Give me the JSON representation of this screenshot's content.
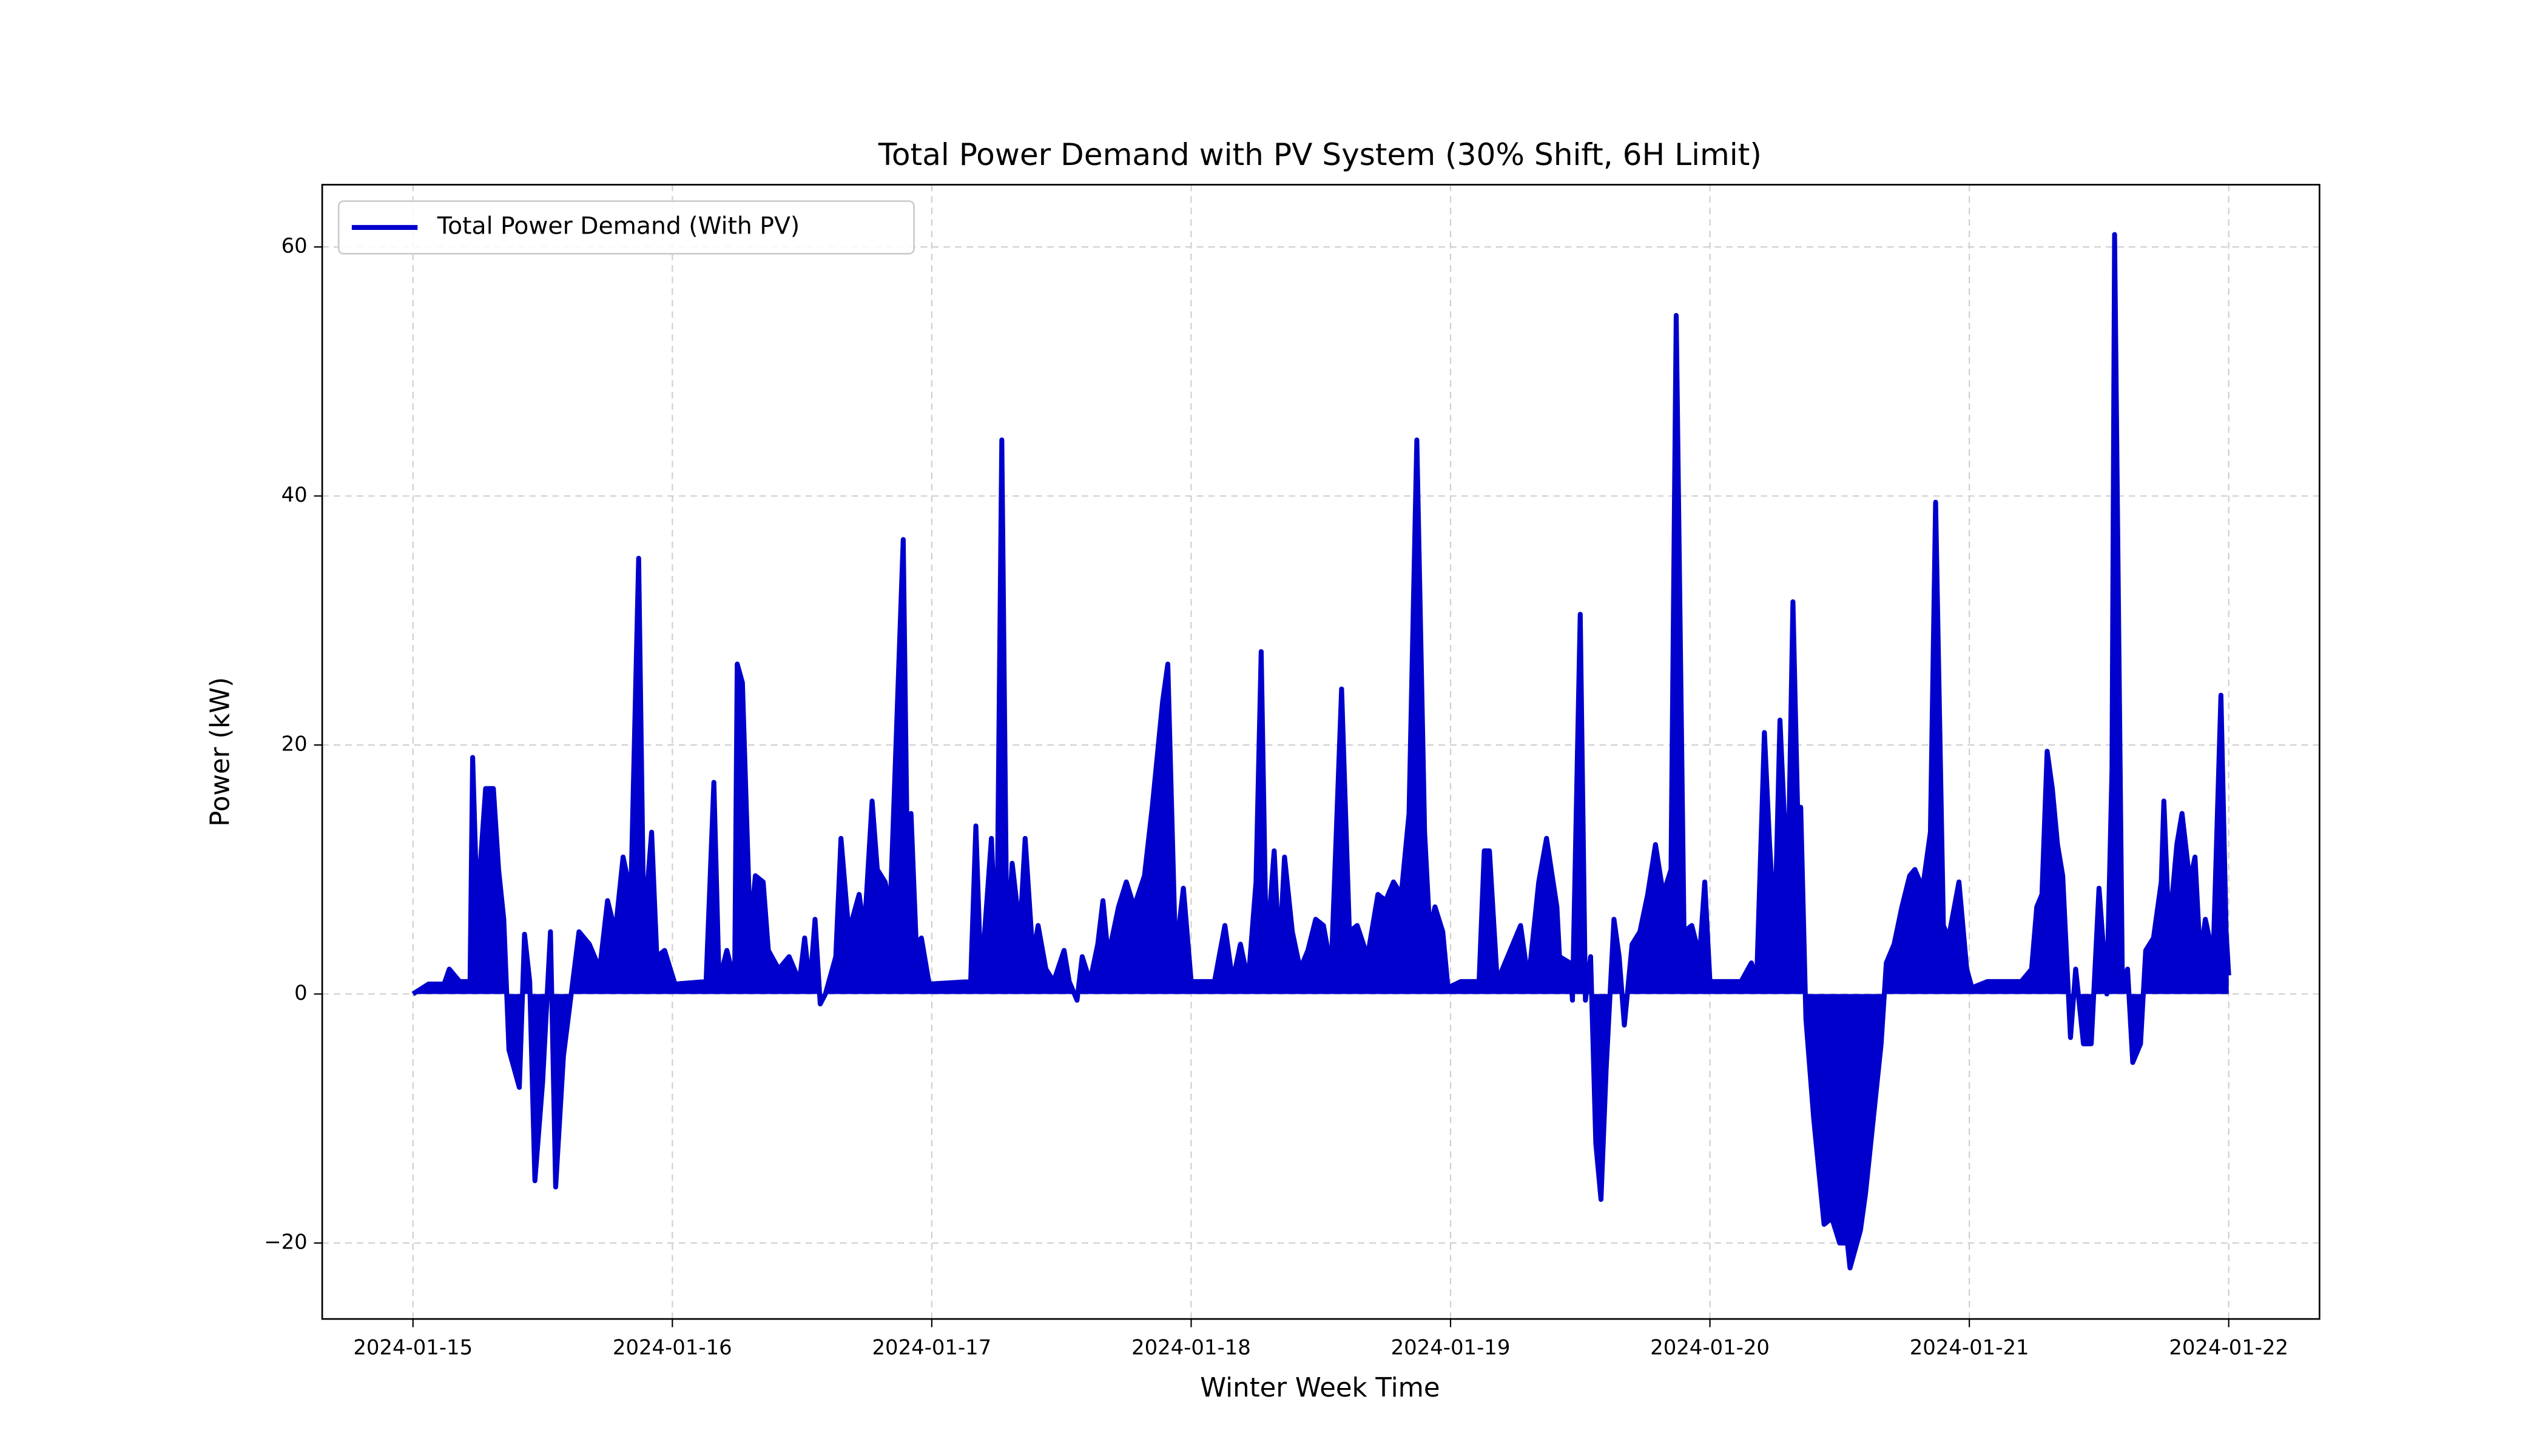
{
  "chart_data": {
    "type": "line",
    "title": "Total Power Demand with PV System (30% Shift, 6H Limit)",
    "xlabel": "Winter Week Time",
    "ylabel": "Power (kW)",
    "xlim": [
      -0.35,
      7.35
    ],
    "xticks": [
      {
        "value": 0,
        "label": "2024-01-15"
      },
      {
        "value": 1,
        "label": "2024-01-16"
      },
      {
        "value": 2,
        "label": "2024-01-17"
      },
      {
        "value": 3,
        "label": "2024-01-18"
      },
      {
        "value": 4,
        "label": "2024-01-19"
      },
      {
        "value": 5,
        "label": "2024-01-20"
      },
      {
        "value": 6,
        "label": "2024-01-21"
      },
      {
        "value": 7,
        "label": "2024-01-22"
      }
    ],
    "ylim": [
      -26.1,
      65
    ],
    "yticks": [
      {
        "value": -20,
        "label": "−20"
      },
      0,
      20,
      40,
      60
    ],
    "grid": true,
    "legend": "upper left",
    "x": [
      0,
      0.06,
      0.12,
      0.14,
      0.18,
      0.22,
      0.23,
      0.25,
      0.26,
      0.28,
      0.31,
      0.33,
      0.35,
      0.37,
      0.41,
      0.43,
      0.45,
      0.47,
      0.5,
      0.53,
      0.55,
      0.58,
      0.61,
      0.64,
      0.68,
      0.72,
      0.75,
      0.78,
      0.81,
      0.84,
      0.87,
      0.89,
      0.92,
      0.94,
      0.97,
      1.01,
      1.13,
      1.16,
      1.18,
      1.21,
      1.24,
      1.25,
      1.27,
      1.3,
      1.32,
      1.35,
      1.37,
      1.41,
      1.45,
      1.49,
      1.51,
      1.53,
      1.55,
      1.57,
      1.59,
      1.63,
      1.65,
      1.68,
      1.72,
      1.74,
      1.77,
      1.79,
      1.82,
      1.84,
      1.89,
      1.91,
      1.92,
      1.94,
      1.96,
      1.99,
      2.15,
      2.17,
      2.19,
      2.23,
      2.25,
      2.27,
      2.29,
      2.31,
      2.34,
      2.36,
      2.39,
      2.41,
      2.44,
      2.47,
      2.51,
      2.53,
      2.56,
      2.58,
      2.61,
      2.64,
      2.66,
      2.68,
      2.72,
      2.75,
      2.78,
      2.82,
      2.85,
      2.89,
      2.91,
      2.94,
      2.97,
      3.0,
      3.09,
      3.13,
      3.16,
      3.19,
      3.22,
      3.25,
      3.27,
      3.29,
      3.32,
      3.34,
      3.36,
      3.39,
      3.42,
      3.45,
      3.48,
      3.51,
      3.54,
      3.58,
      3.61,
      3.64,
      3.68,
      3.72,
      3.75,
      3.78,
      3.81,
      3.84,
      3.87,
      3.9,
      3.92,
      3.94,
      3.97,
      3.99,
      4.04,
      4.11,
      4.13,
      4.15,
      4.18,
      4.22,
      4.27,
      4.3,
      4.34,
      4.37,
      4.41,
      4.42,
      4.46,
      4.47,
      4.5,
      4.52,
      4.54,
      4.56,
      4.58,
      4.6,
      4.63,
      4.65,
      4.67,
      4.7,
      4.73,
      4.76,
      4.79,
      4.82,
      4.85,
      4.87,
      4.9,
      4.93,
      4.96,
      4.98,
      5.0,
      5.06,
      5.12,
      5.16,
      5.18,
      5.21,
      5.23,
      5.25,
      5.27,
      5.3,
      5.32,
      5.34,
      5.35,
      5.37,
      5.4,
      5.44,
      5.47,
      5.5,
      5.53,
      5.54,
      5.58,
      5.6,
      5.63,
      5.66,
      5.68,
      5.71,
      5.74,
      5.77,
      5.79,
      5.82,
      5.85,
      5.87,
      5.9,
      5.92,
      5.96,
      5.99,
      6.01,
      6.07,
      6.13,
      6.2,
      6.24,
      6.26,
      6.28,
      6.3,
      6.32,
      6.34,
      6.36,
      6.39,
      6.41,
      6.44,
      6.47,
      6.5,
      6.53,
      6.55,
      6.56,
      6.59,
      6.61,
      6.63,
      6.66,
      6.68,
      6.71,
      6.74,
      6.75,
      6.77,
      6.8,
      6.82,
      6.85,
      6.87,
      6.89,
      6.91,
      6.94,
      6.97,
      6.99,
      7.0
    ],
    "series": [
      {
        "name": "Total Power Demand (With PV)",
        "color": "#0000cd",
        "fill": true,
        "values": [
          0,
          0.8,
          0.8,
          2,
          1,
          1,
          19,
          5,
          10.5,
          16.5,
          16.5,
          10,
          6,
          -4.5,
          -7.5,
          4.8,
          1,
          -15,
          -7,
          5,
          -15.5,
          -5,
          0,
          5,
          4,
          2,
          7.5,
          5,
          11,
          8,
          35,
          5,
          13,
          3,
          3.5,
          0.8,
          1,
          17,
          1,
          3.5,
          1,
          26.5,
          25,
          5,
          9.5,
          9,
          3.5,
          2,
          3,
          1,
          4.5,
          0.5,
          6,
          -0.8,
          0,
          3,
          12.5,
          5,
          8,
          5,
          15.5,
          10,
          9,
          7,
          36.5,
          4,
          14.5,
          4,
          4.5,
          0.8,
          1,
          13.5,
          1,
          12.5,
          2,
          44.5,
          3,
          10.5,
          5,
          12.5,
          3,
          5.5,
          2,
          1,
          3.5,
          1,
          -0.5,
          3,
          1,
          4,
          7.5,
          3,
          7,
          9,
          7,
          9.5,
          15,
          23.5,
          26.5,
          3,
          8.5,
          1,
          1,
          5.5,
          1,
          4,
          1,
          9,
          27.5,
          3,
          11.5,
          3,
          11,
          5,
          2,
          3.5,
          6,
          5.5,
          2,
          24.5,
          5,
          5.5,
          3,
          8,
          7.5,
          9,
          8,
          14.5,
          44.5,
          13,
          5,
          7,
          5,
          0.5,
          1,
          1,
          11.5,
          11.5,
          1,
          3,
          5.5,
          1,
          9,
          12.5,
          7,
          3,
          2.5,
          -0.5,
          30.5,
          -0.5,
          3,
          -12,
          -16.5,
          -6,
          6,
          3,
          -2.5,
          4,
          5,
          8,
          12,
          8,
          10,
          54.5,
          5,
          5.5,
          3,
          9,
          1,
          1,
          1,
          2.5,
          1,
          21,
          12,
          5,
          22,
          8,
          31.5,
          13,
          15,
          -2,
          -10,
          -18.5,
          -18,
          -20,
          -20,
          -22,
          -19,
          -16,
          -10,
          -4,
          2.5,
          4,
          7,
          9.5,
          10,
          8.5,
          13,
          39.5,
          5.5,
          4.5,
          9,
          2,
          0.5,
          1,
          1,
          1,
          2,
          7,
          8,
          19.5,
          16.5,
          12,
          9.5,
          -3.5,
          2,
          -4,
          -4,
          8.5,
          0,
          18,
          61,
          1,
          2,
          -5.5,
          -4,
          3.5,
          4.5,
          9,
          15.5,
          5,
          12,
          14.5,
          9,
          11,
          3,
          6,
          3,
          24,
          5,
          1.5
        ]
      }
    ]
  }
}
